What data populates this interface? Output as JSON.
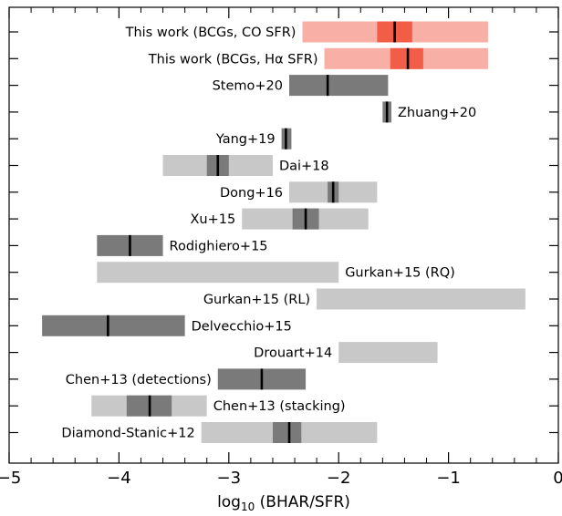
{
  "chart_data": {
    "type": "bar",
    "title": "",
    "xlabel_prefix": "log",
    "xlabel_sub": "10",
    "xlabel_suffix": " (BHAR/SFR)",
    "ylabel": "",
    "xlim": [
      -5,
      0
    ],
    "xticks": [
      -5,
      -4,
      -3,
      -2,
      -1,
      0
    ],
    "xtick_labels": [
      "−5",
      "−4",
      "−3",
      "−2",
      "−1",
      "0"
    ],
    "grid": false,
    "colors": {
      "light_grey": "#c8c8c8",
      "dark_grey": "#7a7a7a",
      "light_red": "#f8b0a6",
      "dark_red": "#f25d47",
      "median": "#000000"
    },
    "series": [
      {
        "label": "This work (BCGs, CO SFR)",
        "outer": [
          -2.33,
          -0.64
        ],
        "inner": [
          -1.65,
          -1.33
        ],
        "median": -1.49,
        "palette": "red",
        "label_side": "left"
      },
      {
        "label": "This work (BCGs, Hα SFR)",
        "outer": [
          -2.13,
          -0.64
        ],
        "inner": [
          -1.53,
          -1.23
        ],
        "median": -1.37,
        "palette": "red",
        "label_side": "left"
      },
      {
        "label": "Stemo+20",
        "outer": null,
        "inner": [
          -2.45,
          -1.55
        ],
        "median": -2.1,
        "palette": "grey",
        "label_side": "left"
      },
      {
        "label": "Zhuang+20",
        "outer": null,
        "inner": [
          -1.6,
          -1.52
        ],
        "median": -1.56,
        "palette": "grey",
        "label_side": "right"
      },
      {
        "label": "Yang+19",
        "outer": null,
        "inner": [
          -2.52,
          -2.43
        ],
        "median": -2.48,
        "palette": "grey",
        "label_side": "left"
      },
      {
        "label": "Dai+18",
        "outer": [
          -3.6,
          -2.6
        ],
        "inner": [
          -3.2,
          -3.0
        ],
        "median": -3.1,
        "palette": "grey",
        "label_side": "right"
      },
      {
        "label": "Dong+16",
        "outer": [
          -2.45,
          -1.65
        ],
        "inner": [
          -2.1,
          -2.0
        ],
        "median": -2.05,
        "palette": "grey",
        "label_side": "left"
      },
      {
        "label": "Xu+15",
        "outer": [
          -2.88,
          -1.73
        ],
        "inner": [
          -2.42,
          -2.18
        ],
        "median": -2.3,
        "palette": "grey",
        "label_side": "left"
      },
      {
        "label": "Rodighiero+15",
        "outer": null,
        "inner": [
          -4.2,
          -3.6
        ],
        "median": -3.9,
        "palette": "grey",
        "label_side": "right"
      },
      {
        "label": "Gurkan+15 (RQ)",
        "outer": [
          -4.2,
          -2.0
        ],
        "inner": null,
        "median": null,
        "palette": "grey",
        "label_side": "right"
      },
      {
        "label": "Gurkan+15 (RL)",
        "outer": [
          -2.2,
          -0.3
        ],
        "inner": null,
        "median": null,
        "palette": "grey",
        "label_side": "left"
      },
      {
        "label": "Delvecchio+15",
        "outer": null,
        "inner": [
          -4.7,
          -3.4
        ],
        "median": -4.1,
        "palette": "grey",
        "label_side": "right"
      },
      {
        "label": "Drouart+14",
        "outer": [
          -2.0,
          -1.1
        ],
        "inner": null,
        "median": null,
        "palette": "grey",
        "label_side": "left"
      },
      {
        "label": "Chen+13 (detections)",
        "outer": null,
        "inner": [
          -3.1,
          -2.3
        ],
        "median": -2.7,
        "palette": "grey",
        "label_side": "left"
      },
      {
        "label": "Chen+13 (stacking)",
        "outer": [
          -4.25,
          -3.2
        ],
        "inner": [
          -3.93,
          -3.52
        ],
        "median": -3.72,
        "palette": "grey",
        "label_side": "right"
      },
      {
        "label": "Diamond-Stanic+12",
        "outer": [
          -3.25,
          -1.65
        ],
        "inner": [
          -2.6,
          -2.34
        ],
        "median": -2.45,
        "palette": "grey",
        "label_side": "left"
      }
    ]
  }
}
